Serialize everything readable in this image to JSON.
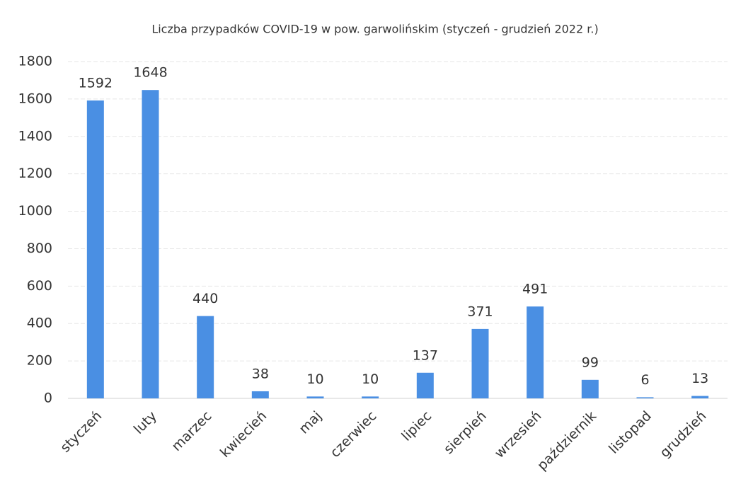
{
  "chart_data": {
    "type": "bar",
    "title": "Liczba przypadków COVID-19 w pow. garwolińskim (styczeń - grudzień 2022 r.)",
    "categories": [
      "styczeń",
      "luty",
      "marzec",
      "kwiecień",
      "maj",
      "czerwiec",
      "lipiec",
      "sierpień",
      "wrzesień",
      "październik",
      "listopad",
      "grudzień"
    ],
    "values": [
      1592,
      1648,
      440,
      38,
      10,
      10,
      137,
      371,
      491,
      99,
      6,
      13
    ],
    "color": "#4a8fe3",
    "ylim": [
      0,
      1800
    ],
    "yticks": [
      0,
      200,
      400,
      600,
      800,
      1000,
      1200,
      1400,
      1600,
      1800
    ],
    "grid": true
  }
}
